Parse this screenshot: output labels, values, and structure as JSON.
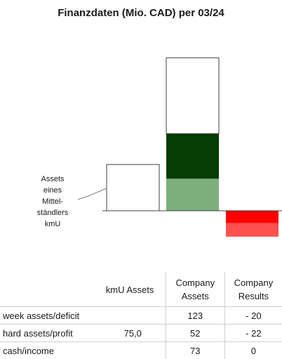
{
  "title": "Finanzdaten (Mio. CAD) per 03/24",
  "annotation": [
    "Assets",
    "eines",
    "Mittel-",
    "ständlers",
    "kmU"
  ],
  "colors": {
    "white_block": "#ffffff",
    "dark_green": "#053d05",
    "light_green": "#7daf7d",
    "red": "#ff0000",
    "light_red": "#ff5050",
    "outline": "#404040"
  },
  "chart_data": {
    "type": "bar",
    "subtype": "stacked",
    "title": "Finanzdaten (Mio. CAD) per 03/24",
    "categories": [
      "kmU Assets",
      "Company Assets",
      "Company Results"
    ],
    "series": [
      {
        "name": "week assets/deficit",
        "values": [
          null,
          123,
          -20
        ]
      },
      {
        "name": "hard assets/profit",
        "values": [
          75.0,
          52,
          -22
        ]
      },
      {
        "name": "cash/income",
        "values": [
          null,
          73,
          0
        ]
      }
    ],
    "stack_order": {
      "Company Assets": [
        "hard assets/profit",
        "cash/income",
        "week assets/deficit"
      ],
      "Company Results": [
        "week assets/deficit",
        "hard assets/profit"
      ]
    },
    "ylim": [
      -42,
      248
    ],
    "axis_labels_shown": false,
    "grid": false
  },
  "table": {
    "headers": [
      "",
      "kmU Assets",
      "Company Assets",
      "Company Results"
    ],
    "rows": [
      {
        "label": "week assets/deficit",
        "kmu": "",
        "assets": "123",
        "results": "- 20"
      },
      {
        "label": "hard assets/profit",
        "kmu": "75,0",
        "assets": "52",
        "results": "- 22"
      },
      {
        "label": "cash/income",
        "kmu": "",
        "assets": "73",
        "results": "0"
      }
    ]
  }
}
